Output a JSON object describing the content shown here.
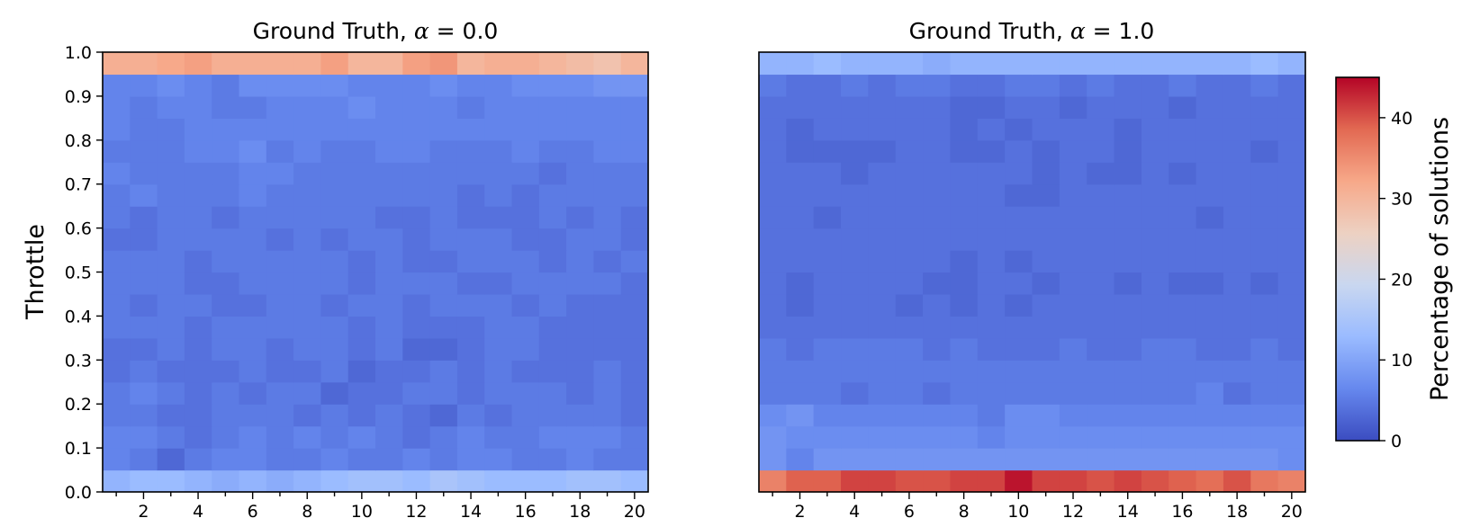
{
  "chart_data": [
    {
      "type": "heatmap",
      "title_prefix": "Ground Truth, ",
      "title_symbol": "α",
      "title_suffix": " = 0.0",
      "ylabel": "Throttle",
      "x_ticks": [
        2,
        4,
        6,
        8,
        10,
        12,
        14,
        16,
        18,
        20
      ],
      "y_ticks": [
        "0.0",
        "0.1",
        "0.2",
        "0.3",
        "0.4",
        "0.5",
        "0.6",
        "0.7",
        "0.8",
        "0.9",
        "1.0"
      ],
      "x_range": [
        1,
        20
      ],
      "ylim": [
        0.0,
        1.0
      ],
      "rows_bottom_to_top": [
        [
          12,
          13,
          13,
          12,
          11,
          12,
          11,
          12,
          13,
          14,
          14,
          13,
          15,
          14,
          13,
          13,
          13,
          14,
          14,
          13
        ],
        [
          6,
          5,
          3,
          5,
          6,
          6,
          5,
          5,
          6,
          5,
          5,
          6,
          5,
          6,
          6,
          5,
          5,
          6,
          5,
          5
        ],
        [
          6,
          6,
          5,
          4,
          5,
          6,
          5,
          6,
          5,
          6,
          5,
          4,
          5,
          6,
          5,
          5,
          6,
          6,
          6,
          5
        ],
        [
          5,
          5,
          4,
          4,
          5,
          5,
          5,
          4,
          5,
          4,
          5,
          4,
          3,
          5,
          4,
          5,
          5,
          5,
          5,
          4
        ],
        [
          5,
          6,
          5,
          4,
          5,
          4,
          5,
          5,
          3,
          4,
          4,
          5,
          5,
          4,
          5,
          5,
          5,
          4,
          5,
          4
        ],
        [
          4,
          5,
          4,
          4,
          4,
          5,
          4,
          4,
          5,
          3,
          4,
          4,
          5,
          4,
          5,
          4,
          4,
          4,
          5,
          4
        ],
        [
          4,
          4,
          5,
          4,
          5,
          5,
          4,
          5,
          5,
          4,
          5,
          3,
          3,
          4,
          5,
          5,
          4,
          4,
          4,
          4
        ],
        [
          5,
          5,
          5,
          4,
          5,
          5,
          5,
          5,
          5,
          4,
          5,
          4,
          4,
          4,
          5,
          5,
          4,
          4,
          4,
          4
        ],
        [
          5,
          4,
          5,
          5,
          4,
          4,
          5,
          5,
          4,
          5,
          5,
          4,
          5,
          5,
          5,
          4,
          5,
          4,
          4,
          4
        ],
        [
          5,
          5,
          5,
          4,
          4,
          5,
          5,
          5,
          5,
          4,
          5,
          5,
          5,
          4,
          4,
          5,
          5,
          5,
          5,
          4
        ],
        [
          5,
          5,
          5,
          4,
          5,
          5,
          5,
          5,
          5,
          4,
          5,
          4,
          4,
          5,
          5,
          5,
          4,
          5,
          4,
          5
        ],
        [
          4,
          4,
          5,
          5,
          5,
          5,
          4,
          5,
          4,
          5,
          5,
          4,
          5,
          5,
          5,
          4,
          4,
          5,
          5,
          4
        ],
        [
          5,
          4,
          5,
          5,
          4,
          5,
          5,
          5,
          5,
          5,
          4,
          4,
          5,
          4,
          4,
          4,
          5,
          4,
          5,
          4
        ],
        [
          5,
          6,
          5,
          5,
          5,
          6,
          5,
          5,
          5,
          5,
          5,
          5,
          5,
          4,
          5,
          4,
          5,
          5,
          5,
          5
        ],
        [
          6,
          5,
          5,
          5,
          5,
          6,
          6,
          5,
          5,
          5,
          5,
          5,
          5,
          5,
          5,
          5,
          4,
          5,
          5,
          5
        ],
        [
          5,
          5,
          5,
          6,
          6,
          7,
          5,
          6,
          5,
          5,
          6,
          6,
          5,
          5,
          5,
          6,
          5,
          5,
          6,
          6
        ],
        [
          6,
          5,
          5,
          6,
          6,
          6,
          6,
          6,
          6,
          6,
          6,
          6,
          6,
          6,
          6,
          6,
          6,
          6,
          6,
          6
        ],
        [
          6,
          5,
          6,
          6,
          5,
          5,
          6,
          6,
          6,
          7,
          6,
          6,
          6,
          5,
          6,
          6,
          6,
          6,
          6,
          6
        ],
        [
          6,
          6,
          7,
          6,
          5,
          7,
          7,
          7,
          7,
          6,
          6,
          6,
          7,
          6,
          6,
          7,
          7,
          7,
          8,
          8
        ],
        [
          31,
          31,
          32,
          33,
          31,
          31,
          31,
          31,
          33,
          30,
          30,
          33,
          34,
          30,
          31,
          31,
          30,
          29,
          28,
          30
        ]
      ]
    },
    {
      "type": "heatmap",
      "title_prefix": "Ground Truth, ",
      "title_symbol": "α",
      "title_suffix": " = 1.0",
      "x_ticks": [
        2,
        4,
        6,
        8,
        10,
        12,
        14,
        16,
        18,
        20
      ],
      "x_range": [
        1,
        20
      ],
      "ylim": [
        0.0,
        1.0
      ],
      "rows_bottom_to_top": [
        [
          36,
          39,
          39,
          41,
          41,
          40,
          40,
          41,
          41,
          44,
          41,
          41,
          40,
          41,
          40,
          39,
          38,
          40,
          37,
          36
        ],
        [
          8,
          6,
          8,
          8,
          8,
          8,
          8,
          8,
          8,
          8,
          8,
          8,
          8,
          8,
          8,
          8,
          8,
          8,
          8,
          7
        ],
        [
          8,
          7,
          7,
          7,
          7,
          7,
          7,
          7,
          6,
          7,
          7,
          7,
          7,
          7,
          7,
          7,
          7,
          7,
          7,
          7
        ],
        [
          7,
          8,
          6,
          6,
          6,
          6,
          6,
          6,
          5,
          7,
          7,
          6,
          6,
          6,
          6,
          6,
          6,
          6,
          6,
          6
        ],
        [
          5,
          5,
          5,
          4,
          5,
          5,
          4,
          5,
          5,
          5,
          5,
          5,
          5,
          5,
          5,
          5,
          6,
          4,
          5,
          5
        ],
        [
          5,
          5,
          5,
          5,
          5,
          5,
          5,
          5,
          5,
          5,
          5,
          5,
          5,
          5,
          5,
          5,
          5,
          5,
          5,
          5
        ],
        [
          5,
          4,
          5,
          5,
          5,
          5,
          4,
          5,
          4,
          4,
          4,
          5,
          4,
          4,
          5,
          5,
          4,
          4,
          5,
          4
        ],
        [
          4,
          4,
          4,
          4,
          4,
          4,
          4,
          4,
          4,
          4,
          4,
          4,
          4,
          4,
          4,
          4,
          4,
          4,
          4,
          4
        ],
        [
          4,
          3,
          4,
          4,
          4,
          3,
          4,
          3,
          4,
          3,
          4,
          4,
          4,
          4,
          4,
          4,
          4,
          4,
          4,
          4
        ],
        [
          4,
          3,
          4,
          4,
          4,
          4,
          3,
          3,
          4,
          4,
          3,
          4,
          4,
          3,
          4,
          3,
          3,
          4,
          3,
          4
        ],
        [
          4,
          4,
          4,
          4,
          4,
          4,
          4,
          3,
          4,
          3,
          4,
          4,
          4,
          4,
          4,
          4,
          4,
          4,
          4,
          4
        ],
        [
          4,
          4,
          4,
          4,
          4,
          4,
          4,
          4,
          4,
          4,
          4,
          4,
          4,
          4,
          4,
          4,
          4,
          4,
          4,
          4
        ],
        [
          4,
          4,
          3,
          4,
          4,
          4,
          4,
          4,
          4,
          4,
          4,
          4,
          4,
          4,
          4,
          4,
          3,
          4,
          4,
          4
        ],
        [
          4,
          4,
          4,
          4,
          4,
          4,
          4,
          4,
          4,
          3,
          3,
          4,
          4,
          4,
          4,
          4,
          4,
          4,
          4,
          4
        ],
        [
          4,
          4,
          4,
          3,
          4,
          4,
          4,
          4,
          4,
          4,
          3,
          4,
          3,
          3,
          4,
          3,
          4,
          4,
          4,
          4
        ],
        [
          4,
          3,
          3,
          3,
          3,
          4,
          4,
          3,
          3,
          4,
          3,
          4,
          4,
          3,
          4,
          4,
          4,
          4,
          3,
          4
        ],
        [
          4,
          3,
          4,
          4,
          4,
          4,
          4,
          3,
          4,
          3,
          4,
          4,
          4,
          3,
          4,
          4,
          4,
          4,
          4,
          4
        ],
        [
          4,
          4,
          4,
          4,
          4,
          4,
          4,
          3,
          3,
          4,
          4,
          3,
          4,
          4,
          4,
          3,
          4,
          4,
          4,
          4
        ],
        [
          5,
          4,
          4,
          5,
          4,
          5,
          5,
          4,
          4,
          5,
          5,
          4,
          5,
          4,
          4,
          5,
          4,
          4,
          5,
          4
        ],
        [
          12,
          12,
          13,
          12,
          12,
          12,
          11,
          12,
          12,
          12,
          12,
          12,
          12,
          12,
          12,
          12,
          12,
          12,
          13,
          12
        ]
      ]
    }
  ],
  "colorbar": {
    "label": "Percentage of solutions",
    "min": 0,
    "max": 45,
    "ticks": [
      0,
      10,
      20,
      30,
      40
    ],
    "colormap": "coolwarm",
    "colors": [
      "#3b4cc0",
      "#6688ee",
      "#9abbff",
      "#c9d7f0",
      "#edd1c2",
      "#f7a889",
      "#e26952",
      "#b40426"
    ]
  }
}
